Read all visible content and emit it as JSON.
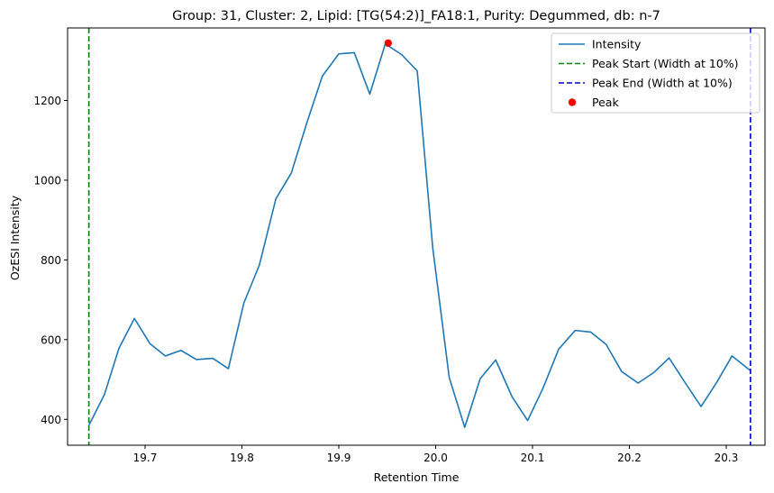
{
  "chart_data": {
    "type": "line",
    "title": "Group: 31, Cluster: 2, Lipid: [TG(54:2)]_FA18:1, Purity: Degummed, db: n-7",
    "xlabel": "Retention Time",
    "ylabel": "OzESI Intensity",
    "xlim": [
      19.62,
      20.34
    ],
    "ylim": [
      335,
      1382
    ],
    "xticks": [
      19.7,
      19.8,
      19.9,
      20.0,
      20.1,
      20.2,
      20.3
    ],
    "xtick_labels": [
      "19.7",
      "19.8",
      "19.9",
      "20.0",
      "20.1",
      "20.2",
      "20.3"
    ],
    "yticks": [
      400,
      600,
      800,
      1000,
      1200
    ],
    "ytick_labels": [
      "400",
      "600",
      "800",
      "1000",
      "1200"
    ],
    "grid": false,
    "legend_position": "top-right",
    "series": [
      {
        "name": "Intensity",
        "color": "#1f77b4",
        "x": [
          19.642,
          19.658,
          19.673,
          19.689,
          19.705,
          19.721,
          19.737,
          19.753,
          19.77,
          19.786,
          19.802,
          19.818,
          19.835,
          19.851,
          19.867,
          19.883,
          19.9,
          19.916,
          19.932,
          19.948,
          19.965,
          19.981,
          19.997,
          20.014,
          20.03,
          20.046,
          20.062,
          20.079,
          20.095,
          20.111,
          20.127,
          20.144,
          20.16,
          20.176,
          20.192,
          20.209,
          20.225,
          20.241,
          20.257,
          20.274,
          20.29,
          20.306,
          20.325
        ],
        "y": [
          385,
          462,
          578,
          653,
          590,
          559,
          573,
          550,
          553,
          527,
          692,
          787,
          953,
          1018,
          1144,
          1261,
          1317,
          1320,
          1216,
          1342,
          1315,
          1274,
          830,
          505,
          380,
          502,
          549,
          456,
          397,
          479,
          576,
          623,
          619,
          588,
          520,
          491,
          517,
          554,
          494,
          432,
          492,
          559,
          522
        ]
      }
    ],
    "peak": {
      "name": "Peak",
      "x": 19.951,
      "y": 1344,
      "color": "#ff0000"
    },
    "peak_start": {
      "name": "Peak Start (Width at 10%)",
      "x": 19.642,
      "color": "#008000"
    },
    "peak_end": {
      "name": "Peak End (Width at 10%)",
      "x": 20.325,
      "color": "#0000cc"
    }
  }
}
